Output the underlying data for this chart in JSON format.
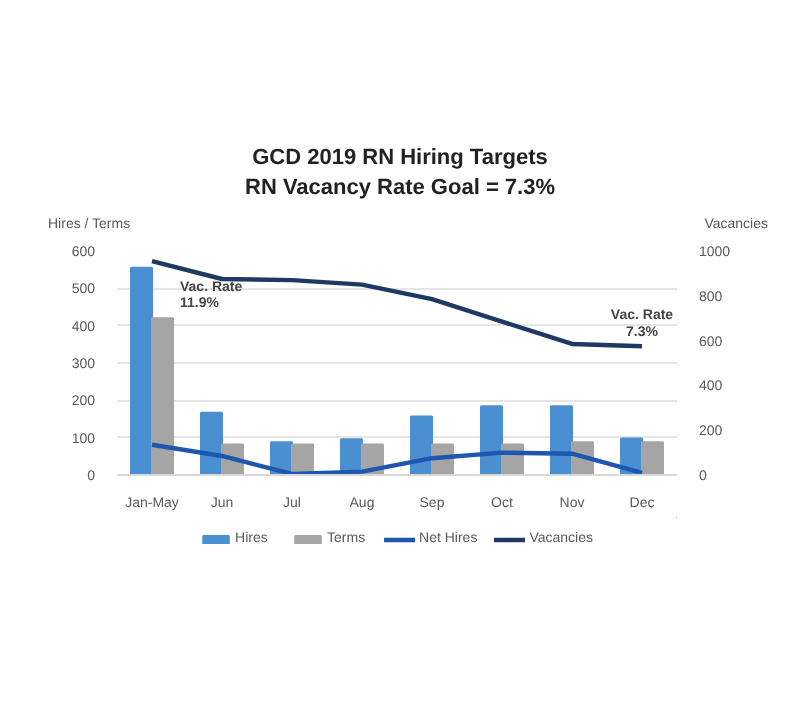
{
  "chart_data": {
    "type": "bar",
    "title": "GCD 2019 RN Hiring Targets",
    "subtitle": "RN Vacancy Rate Goal = 7.3%",
    "ylabel": "Hires / Terms",
    "y2label": "Vacancies",
    "categories": [
      "Jan-May",
      "Jun",
      "Jul",
      "Aug",
      "Sep",
      "Oct",
      "Nov",
      "Dec"
    ],
    "series": [
      {
        "name": "Hires",
        "color": "#4a90d0",
        "values": [
          555,
          167,
          88,
          96,
          157,
          184,
          184,
          98
        ]
      },
      {
        "name": "Terms",
        "color": "#a5a5a5",
        "values": [
          420,
          82,
          82,
          82,
          82,
          82,
          88,
          88
        ]
      },
      {
        "name": "Net Hires",
        "type": "line",
        "axis": "y2",
        "color": "#1f56b0",
        "values": [
          135,
          85,
          5,
          15,
          75,
          100,
          95,
          10
        ]
      },
      {
        "name": "Vacancies",
        "type": "line",
        "axis": "y2",
        "color": "#1f3864",
        "values": [
          955,
          875,
          870,
          850,
          785,
          685,
          585,
          575
        ]
      }
    ],
    "ylim": [
      0,
      600
    ],
    "yticks": [
      0,
      100,
      200,
      300,
      400,
      500,
      600
    ],
    "y2lim": [
      0,
      1000
    ],
    "y2ticks": [
      0,
      200,
      400,
      600,
      800,
      1000
    ],
    "annotations": [
      {
        "text": "Vac. Rate\n11.9%",
        "x": "Jan-May",
        "y": 574
      },
      {
        "text": "Vac. Rate\n7.3%",
        "x": "Dec",
        "y": 346
      }
    ],
    "grid": "y",
    "legend": "bottom"
  }
}
